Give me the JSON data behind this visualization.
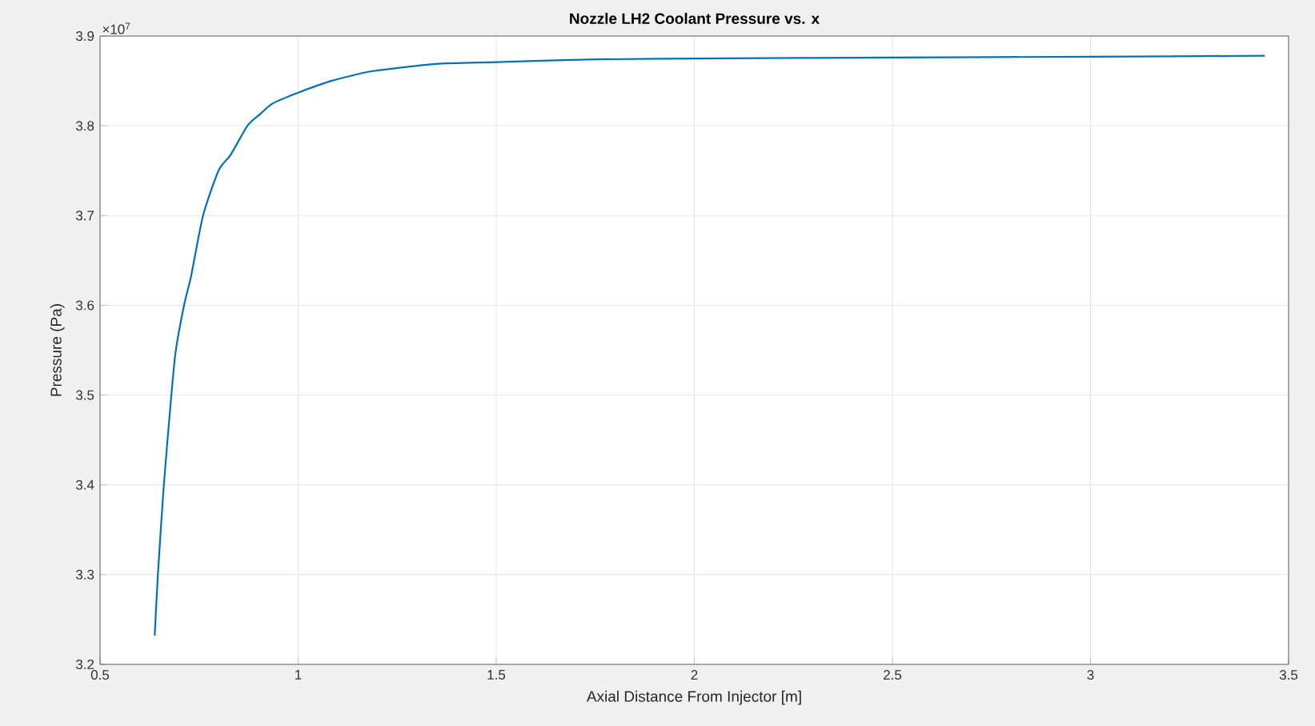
{
  "chart_data": {
    "type": "line",
    "title": "Nozzle LH2 Coolant Pressure vs. x",
    "xlabel": "Axial Distance From Injector [m]",
    "ylabel": "Pressure (Pa)",
    "annotations": [
      "×10$^{7}$"
    ],
    "x": [
      0.638,
      0.646,
      0.661,
      0.68,
      0.691,
      0.712,
      0.73,
      0.76,
      0.799,
      0.83,
      0.872,
      0.904,
      0.936,
      1.0,
      1.083,
      1.136,
      1.189,
      1.347,
      1.5,
      1.75,
      2.0,
      2.5,
      3.0,
      3.44
    ],
    "series": [
      {
        "color": "#0072bd",
        "values": [
          3.232,
          3.3,
          3.4,
          3.5,
          3.549,
          3.6,
          3.633,
          3.7,
          3.75,
          3.768,
          3.8,
          3.813,
          3.825,
          3.837,
          3.85,
          3.856,
          3.861,
          3.869,
          3.871,
          3.874,
          3.875,
          3.876,
          3.877,
          3.878
        ]
      }
    ],
    "xlim": [
      0.5,
      3.5
    ],
    "xticks": [
      0.5,
      1,
      1.5,
      2,
      2.5,
      3,
      3.5
    ],
    "ylim": [
      3.2,
      3.9
    ],
    "yticks": [
      3.2,
      3.3,
      3.4,
      3.5,
      3.6,
      3.7,
      3.8,
      3.9
    ],
    "grid": true,
    "line_style": "solid"
  }
}
